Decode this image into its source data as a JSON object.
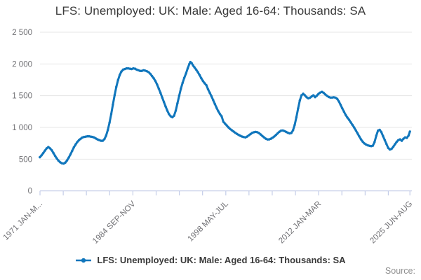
{
  "title": "LFS: Unemployed: UK: Male: Aged 16-64: Thousands: SA",
  "legend": {
    "label": "LFS: Unemployed: UK: Male: Aged 16-64: Thousands: SA",
    "marker": "line-dot-icon"
  },
  "source_label": "Source:",
  "colors": {
    "line": "#1076bc",
    "gridline": "#e6e6e6",
    "axis": "#c4cde8",
    "tick_label": "#6f6f73",
    "title_text": "#3a3a3a",
    "source_text": "#8f8f8f"
  },
  "chart_data": {
    "type": "line",
    "title": "LFS: Unemployed: UK: Male: Aged 16-64: Thousands: SA",
    "xlabel": "",
    "ylabel": "",
    "ylim": [
      0,
      2500
    ],
    "x_range": [
      1971.12,
      2025.55
    ],
    "grid": "horizontal-only",
    "legend_position": "bottom-center",
    "y_ticks": [
      {
        "value": 0,
        "label": "0"
      },
      {
        "value": 500,
        "label": "500"
      },
      {
        "value": 1000,
        "label": "1 000"
      },
      {
        "value": 1500,
        "label": "1 500"
      },
      {
        "value": 2000,
        "label": "2 000"
      },
      {
        "value": 2500,
        "label": "2 500"
      }
    ],
    "x_ticks": [
      {
        "year": 1971.12,
        "label": "1971 JAN-M..."
      },
      {
        "year": 1974.54,
        "label": ""
      },
      {
        "year": 1977.95,
        "label": ""
      },
      {
        "year": 1981.37,
        "label": ""
      },
      {
        "year": 1984.79,
        "label": "1984 SEP-NOV"
      },
      {
        "year": 1988.21,
        "label": ""
      },
      {
        "year": 1991.62,
        "label": ""
      },
      {
        "year": 1995.04,
        "label": ""
      },
      {
        "year": 1998.46,
        "label": "1998 MAY-JUL"
      },
      {
        "year": 2001.87,
        "label": ""
      },
      {
        "year": 2005.29,
        "label": ""
      },
      {
        "year": 2008.71,
        "label": ""
      },
      {
        "year": 2012.12,
        "label": "2012 JAN-MAR"
      },
      {
        "year": 2015.54,
        "label": ""
      },
      {
        "year": 2018.96,
        "label": ""
      },
      {
        "year": 2022.37,
        "label": ""
      },
      {
        "year": 2025.55,
        "label": "2025 JUN-AUG"
      }
    ],
    "series": [
      {
        "name": "LFS: Unemployed: UK: Male: Aged 16-64: Thousands: SA",
        "points": [
          [
            1971.1,
            530
          ],
          [
            1971.35,
            560
          ],
          [
            1971.6,
            595
          ],
          [
            1971.85,
            635
          ],
          [
            1972.1,
            670
          ],
          [
            1972.35,
            690
          ],
          [
            1972.6,
            670
          ],
          [
            1972.85,
            640
          ],
          [
            1973.1,
            595
          ],
          [
            1973.35,
            550
          ],
          [
            1973.6,
            510
          ],
          [
            1973.85,
            475
          ],
          [
            1974.1,
            450
          ],
          [
            1974.35,
            435
          ],
          [
            1974.6,
            430
          ],
          [
            1974.85,
            445
          ],
          [
            1975.1,
            480
          ],
          [
            1975.35,
            525
          ],
          [
            1975.6,
            575
          ],
          [
            1975.85,
            630
          ],
          [
            1976.1,
            685
          ],
          [
            1976.35,
            730
          ],
          [
            1976.6,
            770
          ],
          [
            1976.85,
            800
          ],
          [
            1977.1,
            820
          ],
          [
            1977.35,
            840
          ],
          [
            1977.6,
            850
          ],
          [
            1977.85,
            855
          ],
          [
            1978.1,
            860
          ],
          [
            1978.35,
            860
          ],
          [
            1978.6,
            855
          ],
          [
            1978.85,
            850
          ],
          [
            1979.1,
            840
          ],
          [
            1979.35,
            825
          ],
          [
            1979.6,
            810
          ],
          [
            1979.85,
            800
          ],
          [
            1980.1,
            790
          ],
          [
            1980.35,
            790
          ],
          [
            1980.6,
            815
          ],
          [
            1980.85,
            870
          ],
          [
            1981.1,
            960
          ],
          [
            1981.35,
            1075
          ],
          [
            1981.6,
            1210
          ],
          [
            1981.85,
            1360
          ],
          [
            1982.1,
            1510
          ],
          [
            1982.35,
            1640
          ],
          [
            1982.6,
            1745
          ],
          [
            1982.85,
            1825
          ],
          [
            1983.1,
            1880
          ],
          [
            1983.35,
            1910
          ],
          [
            1983.6,
            1920
          ],
          [
            1983.85,
            1930
          ],
          [
            1984.1,
            1930
          ],
          [
            1984.35,
            1925
          ],
          [
            1984.6,
            1920
          ],
          [
            1984.85,
            1930
          ],
          [
            1985.1,
            1925
          ],
          [
            1985.35,
            1910
          ],
          [
            1985.6,
            1900
          ],
          [
            1985.85,
            1890
          ],
          [
            1986.1,
            1890
          ],
          [
            1986.35,
            1900
          ],
          [
            1986.6,
            1895
          ],
          [
            1986.85,
            1885
          ],
          [
            1987.1,
            1870
          ],
          [
            1987.35,
            1845
          ],
          [
            1987.6,
            1810
          ],
          [
            1987.85,
            1775
          ],
          [
            1988.1,
            1730
          ],
          [
            1988.35,
            1675
          ],
          [
            1988.6,
            1610
          ],
          [
            1988.85,
            1545
          ],
          [
            1989.1,
            1470
          ],
          [
            1989.35,
            1400
          ],
          [
            1989.6,
            1330
          ],
          [
            1989.85,
            1265
          ],
          [
            1990.1,
            1210
          ],
          [
            1990.35,
            1175
          ],
          [
            1990.6,
            1160
          ],
          [
            1990.85,
            1185
          ],
          [
            1991.1,
            1265
          ],
          [
            1991.35,
            1380
          ],
          [
            1991.6,
            1500
          ],
          [
            1991.85,
            1610
          ],
          [
            1992.1,
            1700
          ],
          [
            1992.35,
            1780
          ],
          [
            1992.6,
            1850
          ],
          [
            1992.85,
            1930
          ],
          [
            1993.1,
            2000
          ],
          [
            1993.25,
            2030
          ],
          [
            1993.45,
            2010
          ],
          [
            1993.65,
            1975
          ],
          [
            1993.85,
            1945
          ],
          [
            1994.1,
            1910
          ],
          [
            1994.35,
            1870
          ],
          [
            1994.6,
            1825
          ],
          [
            1994.85,
            1775
          ],
          [
            1995.1,
            1730
          ],
          [
            1995.35,
            1695
          ],
          [
            1995.6,
            1665
          ],
          [
            1995.85,
            1600
          ],
          [
            1996.1,
            1545
          ],
          [
            1996.35,
            1490
          ],
          [
            1996.6,
            1430
          ],
          [
            1996.85,
            1370
          ],
          [
            1997.1,
            1310
          ],
          [
            1997.35,
            1255
          ],
          [
            1997.6,
            1210
          ],
          [
            1997.85,
            1175
          ],
          [
            1998.1,
            1090
          ],
          [
            1998.35,
            1060
          ],
          [
            1998.6,
            1030
          ],
          [
            1998.85,
            1000
          ],
          [
            1999.1,
            975
          ],
          [
            1999.35,
            955
          ],
          [
            1999.6,
            935
          ],
          [
            1999.85,
            915
          ],
          [
            2000.1,
            898
          ],
          [
            2000.35,
            882
          ],
          [
            2000.6,
            868
          ],
          [
            2000.85,
            856
          ],
          [
            2001.1,
            848
          ],
          [
            2001.35,
            842
          ],
          [
            2001.6,
            856
          ],
          [
            2001.85,
            876
          ],
          [
            2002.1,
            896
          ],
          [
            2002.35,
            914
          ],
          [
            2002.6,
            924
          ],
          [
            2002.85,
            930
          ],
          [
            2003.1,
            924
          ],
          [
            2003.35,
            910
          ],
          [
            2003.6,
            888
          ],
          [
            2003.85,
            864
          ],
          [
            2004.1,
            842
          ],
          [
            2004.35,
            822
          ],
          [
            2004.6,
            810
          ],
          [
            2004.85,
            812
          ],
          [
            2005.1,
            822
          ],
          [
            2005.35,
            838
          ],
          [
            2005.6,
            858
          ],
          [
            2005.85,
            882
          ],
          [
            2006.1,
            908
          ],
          [
            2006.35,
            932
          ],
          [
            2006.6,
            950
          ],
          [
            2006.85,
            952
          ],
          [
            2007.1,
            942
          ],
          [
            2007.35,
            928
          ],
          [
            2007.6,
            915
          ],
          [
            2007.85,
            905
          ],
          [
            2008.1,
            912
          ],
          [
            2008.35,
            955
          ],
          [
            2008.6,
            1040
          ],
          [
            2008.85,
            1160
          ],
          [
            2009.1,
            1300
          ],
          [
            2009.35,
            1425
          ],
          [
            2009.6,
            1505
          ],
          [
            2009.85,
            1530
          ],
          [
            2010.1,
            1505
          ],
          [
            2010.35,
            1475
          ],
          [
            2010.6,
            1458
          ],
          [
            2010.85,
            1468
          ],
          [
            2011.1,
            1488
          ],
          [
            2011.35,
            1505
          ],
          [
            2011.6,
            1478
          ],
          [
            2011.85,
            1500
          ],
          [
            2012.1,
            1528
          ],
          [
            2012.35,
            1548
          ],
          [
            2012.6,
            1560
          ],
          [
            2012.85,
            1545
          ],
          [
            2013.1,
            1520
          ],
          [
            2013.35,
            1498
          ],
          [
            2013.6,
            1480
          ],
          [
            2013.85,
            1470
          ],
          [
            2014.1,
            1470
          ],
          [
            2014.35,
            1475
          ],
          [
            2014.6,
            1468
          ],
          [
            2014.85,
            1450
          ],
          [
            2015.1,
            1408
          ],
          [
            2015.35,
            1355
          ],
          [
            2015.6,
            1300
          ],
          [
            2015.85,
            1248
          ],
          [
            2016.1,
            1195
          ],
          [
            2016.35,
            1155
          ],
          [
            2016.6,
            1120
          ],
          [
            2016.85,
            1080
          ],
          [
            2017.1,
            1038
          ],
          [
            2017.35,
            998
          ],
          [
            2017.6,
            952
          ],
          [
            2017.85,
            905
          ],
          [
            2018.1,
            858
          ],
          [
            2018.35,
            812
          ],
          [
            2018.6,
            775
          ],
          [
            2018.85,
            748
          ],
          [
            2019.1,
            730
          ],
          [
            2019.35,
            718
          ],
          [
            2019.6,
            710
          ],
          [
            2019.85,
            705
          ],
          [
            2020.1,
            712
          ],
          [
            2020.35,
            770
          ],
          [
            2020.6,
            870
          ],
          [
            2020.85,
            950
          ],
          [
            2021.1,
            962
          ],
          [
            2021.35,
            925
          ],
          [
            2021.6,
            862
          ],
          [
            2021.85,
            800
          ],
          [
            2022.1,
            738
          ],
          [
            2022.35,
            678
          ],
          [
            2022.6,
            652
          ],
          [
            2022.85,
            662
          ],
          [
            2023.1,
            695
          ],
          [
            2023.35,
            735
          ],
          [
            2023.6,
            772
          ],
          [
            2023.85,
            800
          ],
          [
            2024.1,
            812
          ],
          [
            2024.35,
            790
          ],
          [
            2024.6,
            822
          ],
          [
            2024.85,
            842
          ],
          [
            2025.1,
            835
          ],
          [
            2025.35,
            872
          ],
          [
            2025.55,
            935
          ]
        ]
      }
    ]
  }
}
